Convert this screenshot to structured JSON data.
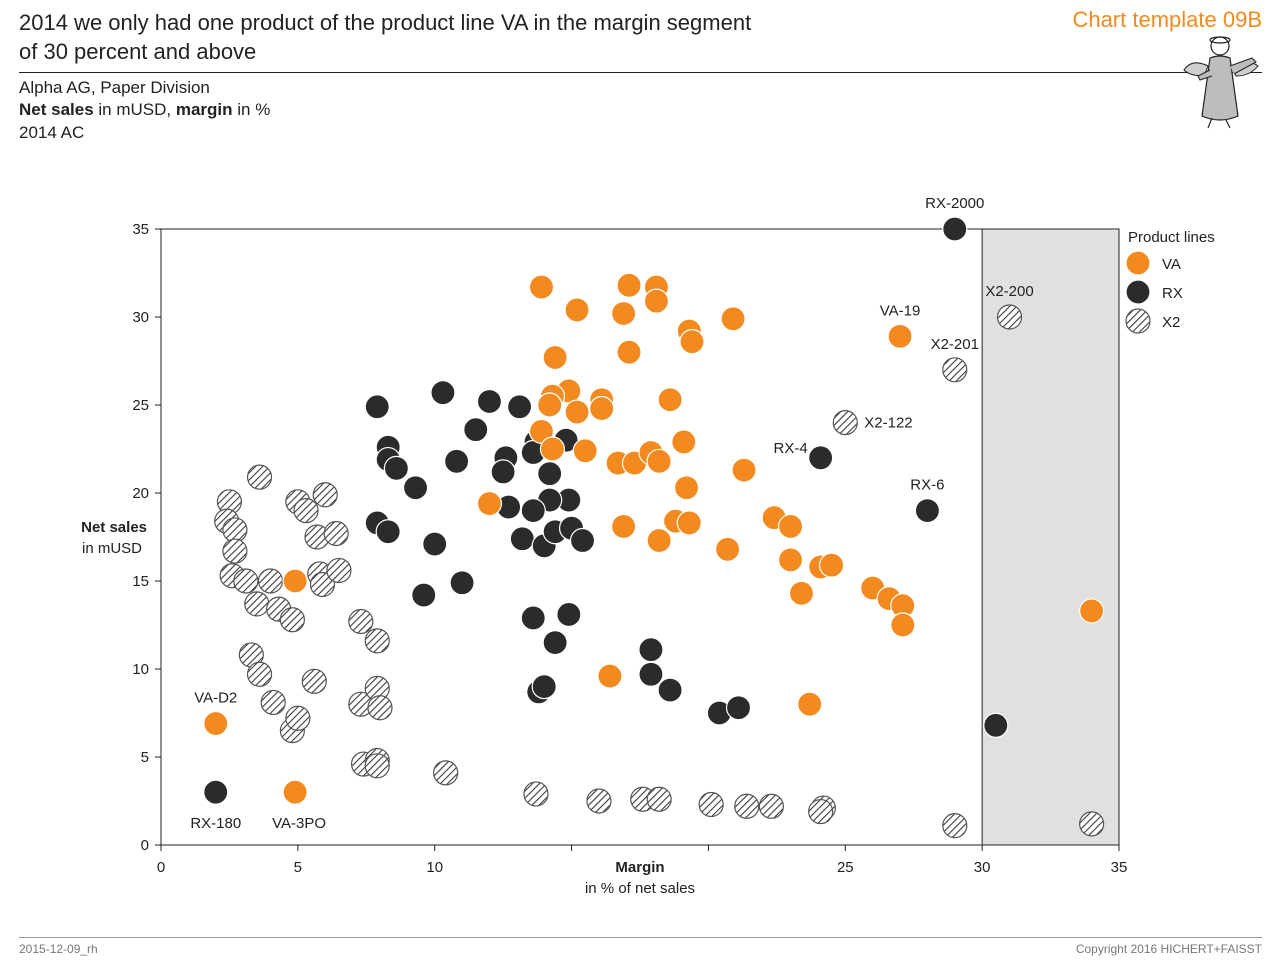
{
  "header": {
    "title_line1": "2014 we only had one product of the product line VA in the margin segment",
    "title_line2": "of 30 percent and above",
    "template_label": "Chart template 09B",
    "company": "Alpha AG, Paper Division",
    "measure_bold1": "Net sales",
    "measure_text1": " in mUSD, ",
    "measure_bold2": "margin",
    "measure_text2": " in %",
    "scenario": "2014 AC"
  },
  "footer": {
    "left": "2015-12-09_rh",
    "right": "Copyright 2016 HICHERT+FAISST"
  },
  "colors": {
    "VA": "#f28a1f",
    "RX": "#2b2b2b",
    "X2": "hatched",
    "highlight_band": "#e0e0e0"
  },
  "chart_data": {
    "type": "scatter",
    "xlabel": "Margin",
    "xlabel_sub": "in % of net sales",
    "ylabel": "Net sales",
    "ylabel_sub": "in mUSD",
    "xlim": [
      0,
      35
    ],
    "ylim": [
      0,
      35
    ],
    "xticks": [
      0,
      5,
      10,
      25,
      30,
      35
    ],
    "yticks": [
      0,
      5,
      10,
      15,
      20,
      25,
      30,
      35
    ],
    "highlight_range_x": [
      30,
      35
    ],
    "legend_title": "Product lines",
    "legend_position": "right",
    "series": [
      {
        "name": "VA",
        "points": [
          [
            13.9,
            31.7
          ],
          [
            15.2,
            30.4
          ],
          [
            17.1,
            31.8
          ],
          [
            18.1,
            31.7
          ],
          [
            18.1,
            30.9
          ],
          [
            16.9,
            30.2
          ],
          [
            19.3,
            29.2
          ],
          [
            19.4,
            28.6
          ],
          [
            20.9,
            29.9
          ],
          [
            14.4,
            27.7
          ],
          [
            17.1,
            28.0
          ],
          [
            27.0,
            28.9
          ],
          [
            14.9,
            25.8
          ],
          [
            14.3,
            25.5
          ],
          [
            14.2,
            25.0
          ],
          [
            15.2,
            24.6
          ],
          [
            16.1,
            25.3
          ],
          [
            16.1,
            24.8
          ],
          [
            18.6,
            25.3
          ],
          [
            13.9,
            23.5
          ],
          [
            14.3,
            22.5
          ],
          [
            15.5,
            22.4
          ],
          [
            16.7,
            21.7
          ],
          [
            17.3,
            21.7
          ],
          [
            17.9,
            22.3
          ],
          [
            18.2,
            21.8
          ],
          [
            19.1,
            22.9
          ],
          [
            21.3,
            21.3
          ],
          [
            19.2,
            20.3
          ],
          [
            12.0,
            19.4
          ],
          [
            16.9,
            18.1
          ],
          [
            18.2,
            17.3
          ],
          [
            18.8,
            18.4
          ],
          [
            19.3,
            18.3
          ],
          [
            20.7,
            16.8
          ],
          [
            22.4,
            18.6
          ],
          [
            23.0,
            18.1
          ],
          [
            23.0,
            16.2
          ],
          [
            23.4,
            14.3
          ],
          [
            24.1,
            15.8
          ],
          [
            24.5,
            15.9
          ],
          [
            26.0,
            14.6
          ],
          [
            26.6,
            14.0
          ],
          [
            27.1,
            13.6
          ],
          [
            27.1,
            12.5
          ],
          [
            16.4,
            9.6
          ],
          [
            23.7,
            8.0
          ],
          [
            4.9,
            15.0
          ],
          [
            2.0,
            6.9
          ],
          [
            4.9,
            3.0
          ],
          [
            34.0,
            13.3
          ]
        ],
        "labels": [
          {
            "text": "VA-19",
            "point": [
              27.0,
              28.9
            ]
          },
          {
            "text": "VA-D2",
            "point": [
              2.0,
              6.9
            ]
          },
          {
            "text": "VA-3PO",
            "point": [
              4.9,
              3.0
            ]
          }
        ]
      },
      {
        "name": "RX",
        "points": [
          [
            29.0,
            35.0
          ],
          [
            10.3,
            25.7
          ],
          [
            7.9,
            24.9
          ],
          [
            12.0,
            25.2
          ],
          [
            13.1,
            24.9
          ],
          [
            11.5,
            23.6
          ],
          [
            13.7,
            22.9
          ],
          [
            14.8,
            23.0
          ],
          [
            8.3,
            22.6
          ],
          [
            8.3,
            21.9
          ],
          [
            8.6,
            21.4
          ],
          [
            10.8,
            21.8
          ],
          [
            12.6,
            22.0
          ],
          [
            12.5,
            21.2
          ],
          [
            13.6,
            22.3
          ],
          [
            14.2,
            21.1
          ],
          [
            9.3,
            20.3
          ],
          [
            14.9,
            19.6
          ],
          [
            14.2,
            19.6
          ],
          [
            12.7,
            19.2
          ],
          [
            13.6,
            19.0
          ],
          [
            7.9,
            18.3
          ],
          [
            8.3,
            17.8
          ],
          [
            10.0,
            17.1
          ],
          [
            13.2,
            17.4
          ],
          [
            14.0,
            17.0
          ],
          [
            14.4,
            17.8
          ],
          [
            15.0,
            18.0
          ],
          [
            15.4,
            17.3
          ],
          [
            11.0,
            14.9
          ],
          [
            9.6,
            14.2
          ],
          [
            13.6,
            12.9
          ],
          [
            14.9,
            13.1
          ],
          [
            14.4,
            11.5
          ],
          [
            17.9,
            11.1
          ],
          [
            17.9,
            9.7
          ],
          [
            18.6,
            8.8
          ],
          [
            13.8,
            8.7
          ],
          [
            14.0,
            9.0
          ],
          [
            20.4,
            7.5
          ],
          [
            21.1,
            7.8
          ],
          [
            24.1,
            22.0
          ],
          [
            28.0,
            19.0
          ],
          [
            30.5,
            6.8
          ],
          [
            2.0,
            3.0
          ]
        ],
        "labels": [
          {
            "text": "RX-2000",
            "point": [
              29.0,
              35.0
            ]
          },
          {
            "text": "RX-4",
            "point": [
              24.1,
              22.0
            ]
          },
          {
            "text": "RX-6",
            "point": [
              28.0,
              19.0
            ]
          },
          {
            "text": "RX-180",
            "point": [
              2.0,
              3.0
            ]
          }
        ]
      },
      {
        "name": "X2",
        "points": [
          [
            3.6,
            20.9
          ],
          [
            2.5,
            19.5
          ],
          [
            2.4,
            18.4
          ],
          [
            2.7,
            17.9
          ],
          [
            2.7,
            16.7
          ],
          [
            2.6,
            15.3
          ],
          [
            3.1,
            15.0
          ],
          [
            3.5,
            13.7
          ],
          [
            4.0,
            15.0
          ],
          [
            4.3,
            13.4
          ],
          [
            4.8,
            12.8
          ],
          [
            5.0,
            19.5
          ],
          [
            5.3,
            19.0
          ],
          [
            5.7,
            17.5
          ],
          [
            6.0,
            19.9
          ],
          [
            6.4,
            17.7
          ],
          [
            5.8,
            15.4
          ],
          [
            5.9,
            14.8
          ],
          [
            6.5,
            15.6
          ],
          [
            7.3,
            12.7
          ],
          [
            7.9,
            11.6
          ],
          [
            3.3,
            10.8
          ],
          [
            3.6,
            9.7
          ],
          [
            4.1,
            8.1
          ],
          [
            4.8,
            6.5
          ],
          [
            5.0,
            7.2
          ],
          [
            5.6,
            9.3
          ],
          [
            7.3,
            8.0
          ],
          [
            7.9,
            8.9
          ],
          [
            8.0,
            7.8
          ],
          [
            7.4,
            4.6
          ],
          [
            7.9,
            4.8
          ],
          [
            7.9,
            4.5
          ],
          [
            10.4,
            4.1
          ],
          [
            13.7,
            2.9
          ],
          [
            16.0,
            2.5
          ],
          [
            17.6,
            2.6
          ],
          [
            18.2,
            2.6
          ],
          [
            20.1,
            2.3
          ],
          [
            21.4,
            2.2
          ],
          [
            22.3,
            2.2
          ],
          [
            24.2,
            2.1
          ],
          [
            24.1,
            1.9
          ],
          [
            25.0,
            24.0
          ],
          [
            29.0,
            27.0
          ],
          [
            31.0,
            30.0
          ],
          [
            29.0,
            1.1
          ],
          [
            34.0,
            1.2
          ]
        ],
        "labels": [
          {
            "text": "X2-200",
            "point": [
              31.0,
              30.0
            ]
          },
          {
            "text": "X2-201",
            "point": [
              29.0,
              27.0
            ]
          },
          {
            "text": "X2-122",
            "point": [
              25.0,
              24.0
            ]
          }
        ]
      }
    ]
  }
}
